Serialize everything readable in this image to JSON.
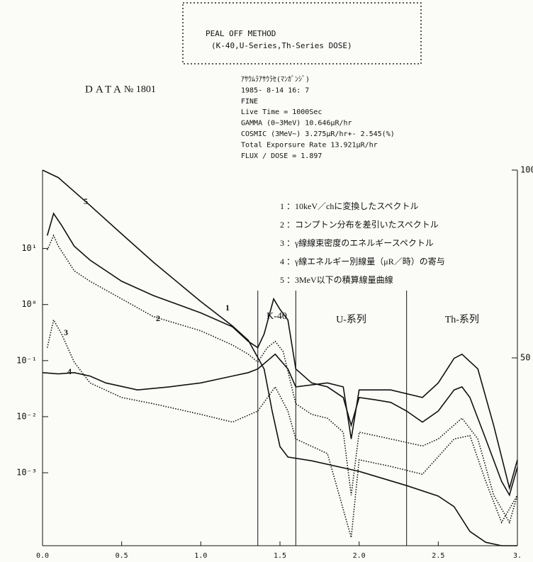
{
  "chart_data": {
    "type": "line",
    "header": [
      "PEAL OFF METHOD",
      "(K-40,U-Series,Th-Series DOSE)"
    ],
    "data_label": "DATA",
    "data_number": "№ 1801",
    "info": [
      "ｱｻｳﾑﾗｱｻｳﾗｾ(ﾏﾝｶﾞﾝｼﾞ)",
      "1985- 8-14    16: 7",
      "FINE",
      "Live Time = 1000Sec",
      "GAMMA (0~3MeV) 10.646μR/hr",
      "COSMIC (3MeV~)  3.275μR/hr+- 2.545(%)",
      "Total Exporsure Rate 13.921μR/hr",
      "FLUX / DOSE =  1.897"
    ],
    "log_y": true,
    "xlim": [
      0,
      3
    ],
    "xticks": [
      {
        "value": 0,
        "label": "0.0"
      },
      0.5,
      {
        "value": 1,
        "label": "1.0"
      },
      1.5,
      {
        "value": 2,
        "label": "2.0"
      },
      2.5,
      {
        "value": 3,
        "label": "3."
      }
    ],
    "ylim": [
      5e-05,
      250
    ],
    "yticks": [
      {
        "value": 10,
        "label": "10¹"
      },
      {
        "value": 1,
        "label": "10⁰"
      },
      {
        "value": 0.1,
        "label": "10⁻¹"
      },
      {
        "value": 0.01,
        "label": "10⁻²"
      },
      {
        "value": 0.001,
        "label": "10⁻³"
      }
    ],
    "y2lim": [
      0,
      100
    ],
    "y2ticks": [
      50,
      100
    ],
    "regions": [
      {
        "label": "K-40",
        "start": 1.36,
        "end": 1.6
      },
      {
        "label": "U-系列",
        "start": 1.6,
        "end": 2.3
      },
      {
        "label": "Th-系列",
        "start": 2.3,
        "end": 3
      }
    ],
    "series": [
      {
        "name": "1",
        "description": "：10keV／chに変換したスペクトル",
        "color": "#111111",
        "style": "solid",
        "x": [
          0.03,
          0.07,
          0.12,
          0.2,
          0.3,
          0.5,
          0.7,
          1.0,
          1.2,
          1.3,
          1.36,
          1.4,
          1.46,
          1.5,
          1.55,
          1.6,
          1.7,
          1.8,
          1.9,
          1.95,
          2.0,
          2.1,
          2.2,
          2.3,
          2.4,
          2.5,
          2.6,
          2.65,
          2.7,
          2.8,
          2.9,
          2.95,
          3.0
        ],
        "values": [
          17,
          42,
          26,
          11,
          6.2,
          2.6,
          1.45,
          0.71,
          0.4,
          0.22,
          0.17,
          0.3,
          1.26,
          0.82,
          0.53,
          0.071,
          0.04,
          0.034,
          0.022,
          0.007,
          0.022,
          0.02,
          0.018,
          0.0126,
          0.008,
          0.0126,
          0.03,
          0.034,
          0.022,
          0.004,
          0.0007,
          0.0004,
          0.00126
        ]
      },
      {
        "name": "2",
        "description": "：コンプトン分布を差引いたスペクトル",
        "color": "#111111",
        "style": "dotted",
        "x": [
          0.03,
          0.07,
          0.1,
          0.2,
          0.3,
          0.5,
          0.7,
          1.0,
          1.2,
          1.3,
          1.36,
          1.42,
          1.47,
          1.52,
          1.6,
          1.7,
          1.8,
          1.9,
          1.95,
          2.0,
          2.2,
          2.4,
          2.5,
          2.65,
          2.75,
          2.85,
          2.95,
          3.0
        ],
        "values": [
          9.4,
          17,
          11,
          4,
          2.6,
          1.26,
          0.61,
          0.34,
          0.19,
          0.13,
          0.094,
          0.17,
          0.22,
          0.145,
          0.017,
          0.011,
          0.0094,
          0.0053,
          0.0004,
          0.0053,
          0.004,
          0.003,
          0.004,
          0.0094,
          0.004,
          0.0004,
          0.00013,
          0.0004
        ]
      },
      {
        "name": "3",
        "description": "：γ線線束密度のエネルギースペクトル",
        "color": "#111111",
        "style": "dotted",
        "x": [
          0.03,
          0.07,
          0.12,
          0.2,
          0.3,
          0.5,
          0.7,
          1.0,
          1.2,
          1.36,
          1.47,
          1.55,
          1.6,
          1.8,
          1.95,
          2.0,
          2.2,
          2.4,
          2.6,
          2.7,
          2.8,
          2.9,
          3.0
        ],
        "values": [
          0.17,
          0.53,
          0.3,
          0.094,
          0.04,
          0.022,
          0.017,
          0.011,
          0.008,
          0.0126,
          0.034,
          0.0126,
          0.004,
          0.0022,
          7e-05,
          0.0017,
          0.0013,
          0.00094,
          0.004,
          0.0046,
          0.0007,
          0.00013,
          0.0004
        ]
      },
      {
        "name": "4",
        "description": "：γ線エネルギー別線量（μR／時）の寄与",
        "color": "#111111",
        "style": "solid",
        "x": [
          0.0,
          0.1,
          0.2,
          0.3,
          0.4,
          0.6,
          0.8,
          1.0,
          1.2,
          1.3,
          1.36,
          1.47,
          1.55,
          1.6,
          1.8,
          1.9,
          1.95,
          2.0,
          2.2,
          2.4,
          2.5,
          2.6,
          2.65,
          2.75,
          2.85,
          2.95,
          3.0
        ],
        "values": [
          0.061,
          0.058,
          0.061,
          0.053,
          0.04,
          0.03,
          0.034,
          0.04,
          0.053,
          0.061,
          0.071,
          0.13,
          0.071,
          0.034,
          0.04,
          0.034,
          0.004,
          0.03,
          0.03,
          0.022,
          0.04,
          0.11,
          0.13,
          0.071,
          0.007,
          0.00053,
          0.0017
        ]
      },
      {
        "name": "5",
        "description": "：3MeV以下の積算線量曲線",
        "color": "#111111",
        "style": "solid",
        "axis": "y2",
        "x": [
          0.0,
          0.1,
          0.3,
          0.5,
          0.7,
          1.0,
          1.2,
          1.3,
          1.4,
          1.45,
          1.5,
          1.55,
          1.7,
          2.0,
          2.3,
          2.5,
          2.6,
          2.7,
          2.8,
          2.9,
          3.0
        ],
        "values": [
          100,
          98,
          90.6,
          83,
          75.5,
          65,
          58.5,
          54.7,
          47,
          36,
          26.4,
          23.6,
          22.6,
          19.8,
          16,
          13.2,
          10.4,
          3.8,
          0.9,
          0,
          0
        ]
      }
    ]
  }
}
